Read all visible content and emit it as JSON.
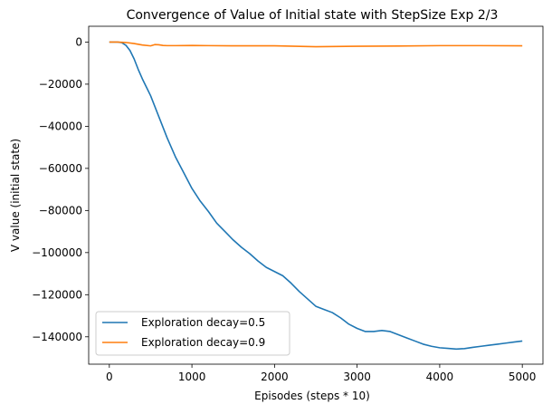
{
  "chart_data": {
    "type": "line",
    "title": "Convergence of Value of Initial state with StepSize Exp 2/3",
    "xlabel": "Episodes (steps * 10)",
    "ylabel": "V value (initial state)",
    "xlim": [
      -250,
      5250
    ],
    "ylim": [
      -153000,
      7500
    ],
    "xticks": [
      0,
      1000,
      2000,
      3000,
      4000,
      5000
    ],
    "xtick_labels": [
      "0",
      "1000",
      "2000",
      "3000",
      "4000",
      "5000"
    ],
    "yticks": [
      0,
      -20000,
      -40000,
      -60000,
      -80000,
      -100000,
      -120000,
      -140000
    ],
    "ytick_labels": [
      "0",
      "−20000",
      "−40000",
      "−60000",
      "−80000",
      "−100000",
      "−120000",
      "−140000"
    ],
    "grid": false,
    "legend_position": "lower-left",
    "series": [
      {
        "name": "Exploration decay=0.5",
        "color": "#1f77b4",
        "x": [
          0,
          100,
          150,
          200,
          250,
          300,
          350,
          400,
          450,
          500,
          600,
          700,
          800,
          900,
          1000,
          1100,
          1200,
          1300,
          1400,
          1500,
          1600,
          1700,
          1800,
          1900,
          2000,
          2100,
          2200,
          2300,
          2400,
          2500,
          2600,
          2700,
          2800,
          2900,
          3000,
          3100,
          3200,
          3300,
          3400,
          3500,
          3600,
          3700,
          3800,
          3900,
          4000,
          4100,
          4200,
          4300,
          4400,
          4500,
          4600,
          4700,
          4800,
          4900,
          5000
        ],
        "values": [
          0,
          0,
          -300,
          -1500,
          -4000,
          -8000,
          -13000,
          -17500,
          -21500,
          -25500,
          -35500,
          -45500,
          -54500,
          -62000,
          -69500,
          -75500,
          -80500,
          -86000,
          -90000,
          -94000,
          -97500,
          -100500,
          -104000,
          -107000,
          -109000,
          -111000,
          -114500,
          -118500,
          -122000,
          -125500,
          -127000,
          -128500,
          -131000,
          -134000,
          -136000,
          -137500,
          -137500,
          -137000,
          -137500,
          -139000,
          -140500,
          -142000,
          -143500,
          -144500,
          -145200,
          -145500,
          -145800,
          -145600,
          -145000,
          -144500,
          -144000,
          -143500,
          -143000,
          -142500,
          -142000
        ]
      },
      {
        "name": "Exploration decay=0.9",
        "color": "#ff7f0e",
        "x": [
          0,
          100,
          200,
          300,
          400,
          500,
          550,
          600,
          650,
          700,
          800,
          1000,
          1200,
          1500,
          2000,
          2500,
          3000,
          3500,
          4000,
          4500,
          5000
        ],
        "values": [
          0,
          0,
          -200,
          -700,
          -1400,
          -1800,
          -1200,
          -1300,
          -1600,
          -1700,
          -1700,
          -1600,
          -1700,
          -1800,
          -1800,
          -2200,
          -2000,
          -1900,
          -1700,
          -1700,
          -1800
        ]
      }
    ]
  }
}
